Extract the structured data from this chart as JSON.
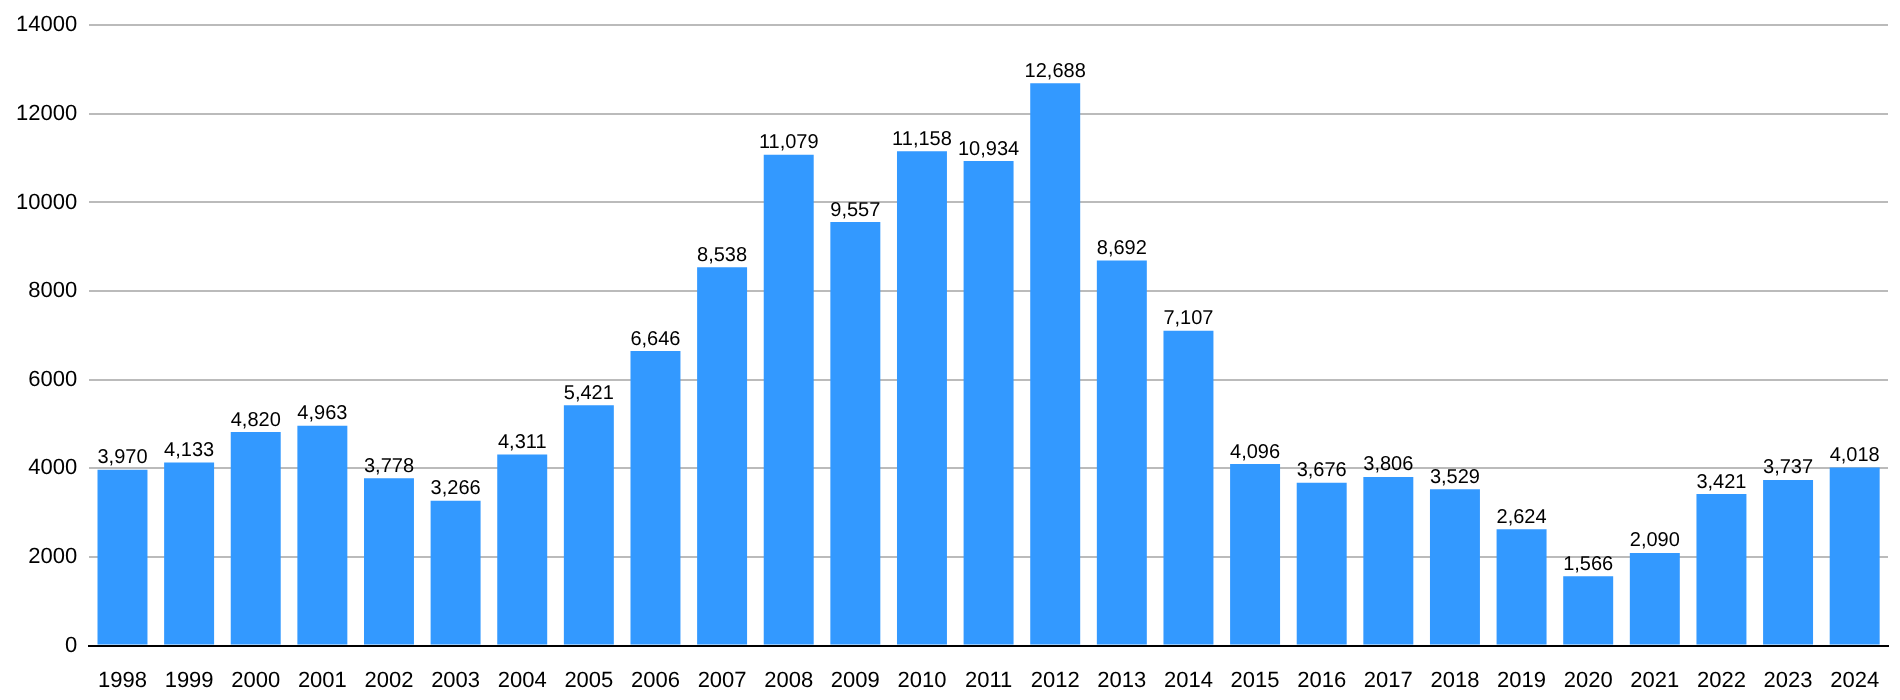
{
  "chart_data": {
    "type": "bar",
    "categories": [
      "1998",
      "1999",
      "2000",
      "2001",
      "2002",
      "2003",
      "2004",
      "2005",
      "2006",
      "2007",
      "2008",
      "2009",
      "2010",
      "2011",
      "2012",
      "2013",
      "2014",
      "2015",
      "2016",
      "2017",
      "2018",
      "2019",
      "2020",
      "2021",
      "2022",
      "2023",
      "2024"
    ],
    "values": [
      3970,
      4133,
      4820,
      4963,
      3778,
      3266,
      4311,
      5421,
      6646,
      8538,
      11079,
      9557,
      11158,
      10934,
      12688,
      8692,
      7107,
      4096,
      3676,
      3806,
      3529,
      2624,
      1566,
      2090,
      3421,
      3737,
      4018
    ],
    "value_labels": [
      "3,970",
      "4,133",
      "4,820",
      "4,963",
      "3,778",
      "3,266",
      "4,311",
      "5,421",
      "6,646",
      "8,538",
      "11,079",
      "9,557",
      "11,158",
      "10,934",
      "12,688",
      "8,692",
      "7,107",
      "4,096",
      "3,676",
      "3,806",
      "3,529",
      "2,624",
      "1,566",
      "2,090",
      "3,421",
      "3,737",
      "4,018"
    ],
    "color": "#3399ff",
    "ylim": [
      0,
      14000
    ],
    "yticks": [
      0,
      2000,
      4000,
      6000,
      8000,
      10000,
      12000,
      14000
    ],
    "grid": "y",
    "legend": false
  }
}
